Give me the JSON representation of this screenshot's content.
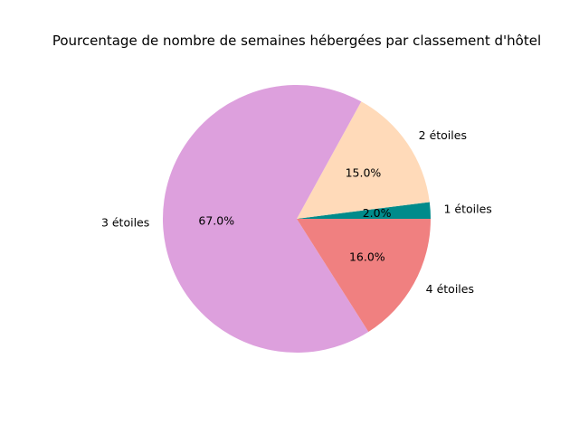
{
  "chart_data": {
    "type": "pie",
    "title": "Pourcentage de nombre de semaines hébergées par classement d'hôtel",
    "slices": [
      {
        "label": "1 étoiles",
        "value": 2.0,
        "pct_label": "2.0%",
        "color": "#008b8b"
      },
      {
        "label": "2 étoiles",
        "value": 15.0,
        "pct_label": "15.0%",
        "color": "#ffdab9"
      },
      {
        "label": "3 étoiles",
        "value": 67.0,
        "pct_label": "67.0%",
        "color": "#dda0dd"
      },
      {
        "label": "4 étoiles",
        "value": 16.0,
        "pct_label": "16.0%",
        "color": "#f08080"
      }
    ],
    "start_angle_deg": 0,
    "direction": "counterclockwise"
  }
}
